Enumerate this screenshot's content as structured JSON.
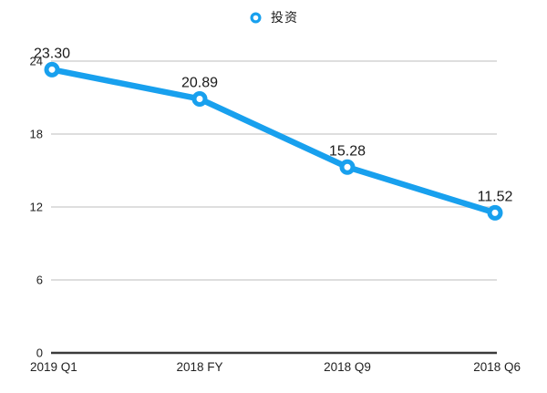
{
  "legend": {
    "label": "投资",
    "marker": "ring-icon"
  },
  "chart_data": {
    "type": "line",
    "title": "",
    "xlabel": "",
    "ylabel": "",
    "categories": [
      "2019 Q1",
      "2018 FY",
      "2018 Q9",
      "2018 Q6"
    ],
    "series": [
      {
        "name": "投资",
        "values": [
          23.3,
          20.89,
          15.28,
          11.52
        ],
        "data_labels": [
          "23.30",
          "20.89",
          "15.28",
          "11.52"
        ]
      }
    ],
    "ylim": [
      0,
      24
    ],
    "yticks": [
      0,
      6,
      12,
      18,
      24
    ],
    "grid": "horizontal",
    "legend_position": "top-center",
    "colors": {
      "line": "#18A0EE",
      "marker_fill": "#ffffff",
      "gridline": "#DADADA",
      "axis_line": "#3b3b3b",
      "label_text": "#1a1a1a",
      "tick_text": "#222222",
      "background": "#ffffff"
    }
  }
}
